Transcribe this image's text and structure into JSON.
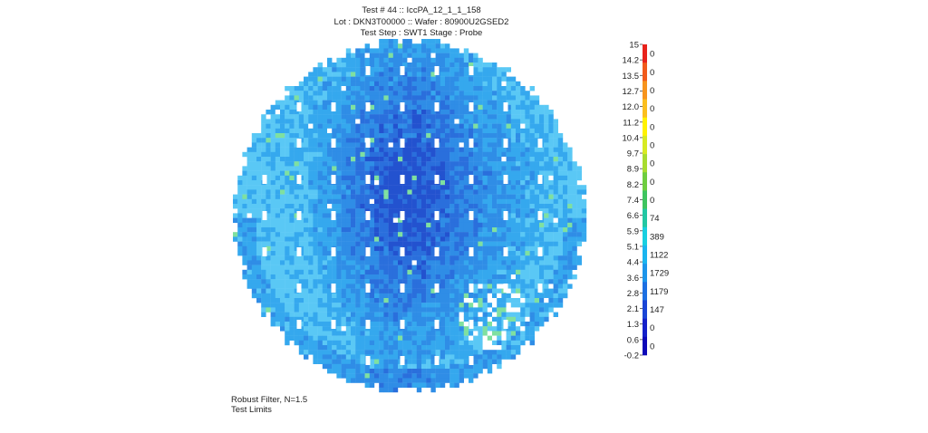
{
  "header": {
    "line1": "Test #  44 :: IccPA_12_1_1_158",
    "line2": "Lot : DKN3T00000 :: Wafer : 80900U2GSED2",
    "line3": "Test Step : SWT1 Stage : Probe"
  },
  "footer": {
    "filter": "Robust Filter, N=1.5",
    "limits": "Test Limits"
  },
  "chart_data": {
    "type": "heatmap",
    "title": "Test #  44 :: IccPA_12_1_1_158",
    "subtitle": "Lot : DKN3T00000 :: Wafer : 80900U2GSED2",
    "map_shape": "circular wafer die map",
    "color_scale": {
      "ticks": [
        "15",
        "14.2",
        "13.5",
        "12.7",
        "12.0",
        "11.2",
        "10.4",
        "9.7",
        "8.9",
        "8.2",
        "7.4",
        "6.6",
        "5.9",
        "5.1",
        "4.4",
        "3.6",
        "2.8",
        "2.1",
        "1.3",
        "0.6",
        "-0.2"
      ],
      "bins": [
        {
          "color": "#e8221b",
          "count": "0"
        },
        {
          "color": "#f15a1b",
          "count": "0"
        },
        {
          "color": "#f7941d",
          "count": "0"
        },
        {
          "color": "#fbbf1e",
          "count": "0"
        },
        {
          "color": "#fff200",
          "count": "0"
        },
        {
          "color": "#d7ea23",
          "count": "0"
        },
        {
          "color": "#a8dc30",
          "count": "0"
        },
        {
          "color": "#6fcd3f",
          "count": "0"
        },
        {
          "color": "#3ec45f",
          "count": "0"
        },
        {
          "color": "#22c7a3",
          "count": "74"
        },
        {
          "color": "#19cfe0",
          "count": "389"
        },
        {
          "color": "#1ab5ef",
          "count": "1122"
        },
        {
          "color": "#1c95ea",
          "count": "1729"
        },
        {
          "color": "#1c6fe2",
          "count": "1179"
        },
        {
          "color": "#1a45d6",
          "count": "147"
        },
        {
          "color": "#1420c9",
          "count": "0"
        },
        {
          "color": "#0d08b8",
          "count": "0"
        }
      ]
    },
    "dominant_colors": {
      "high_light": "#5ac8f5",
      "mid_light": "#35a8ee",
      "mid": "#2f8de6",
      "low": "#2a6fdc",
      "lowest": "#2352cf",
      "green_outliers": "#7fe0a0",
      "missing_die": "#ffffff"
    }
  }
}
